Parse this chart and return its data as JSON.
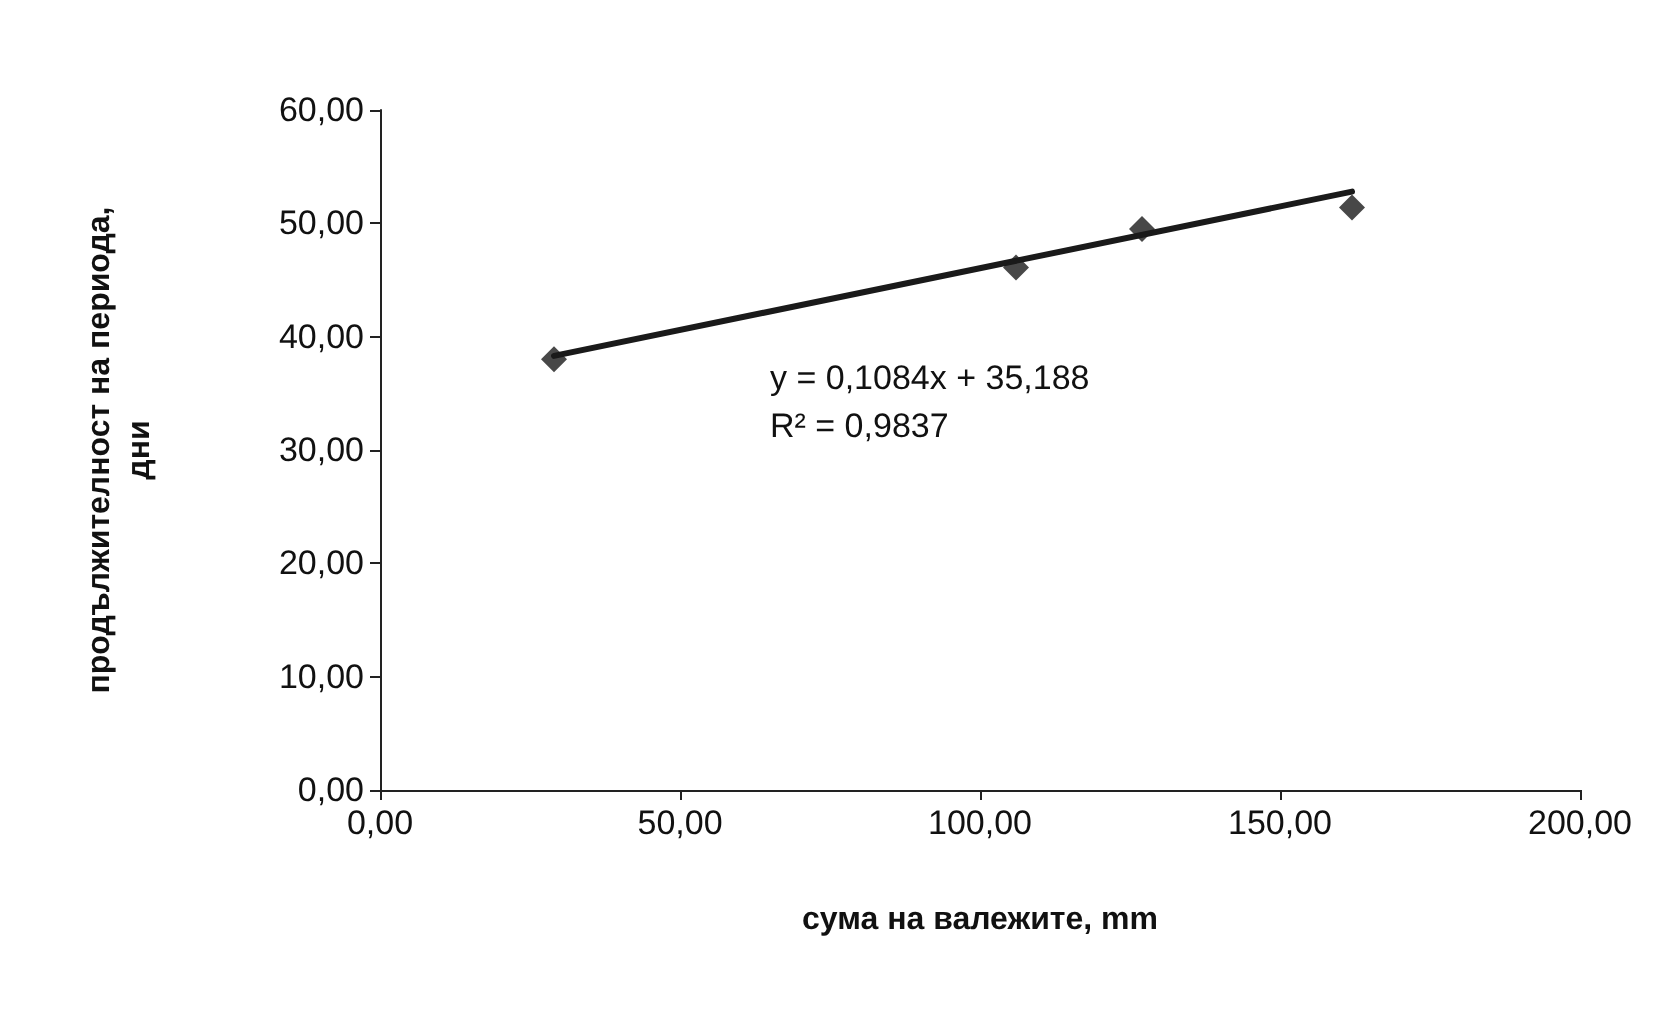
{
  "chart_data": {
    "type": "scatter",
    "xlabel": "сума на валежите, mm",
    "ylabel": "продължителност на периода,\nдни",
    "x": [
      29,
      106,
      127,
      162
    ],
    "series": [
      {
        "color": "#1a1a1a",
        "values": [
          38,
          46.1,
          49.5,
          51.4
        ],
        "marker": "diamond"
      },
      {
        "type": "line",
        "color": "#1a1a1a",
        "x": [
          29,
          162
        ],
        "values": [
          38.3,
          52.8
        ],
        "line_style": "solid",
        "marker": "none"
      }
    ],
    "xlim": [
      0,
      200
    ],
    "xticks": [
      {
        "value": 0,
        "label": "0,00"
      },
      {
        "value": 50,
        "label": "50,00"
      },
      {
        "value": 100,
        "label": "100,00"
      },
      {
        "value": 150,
        "label": "150,00"
      },
      {
        "value": 200,
        "label": "200,00"
      }
    ],
    "ylim": [
      0,
      60
    ],
    "yticks": [
      {
        "value": 0,
        "label": "0,00"
      },
      {
        "value": 10,
        "label": "10,00"
      },
      {
        "value": 20,
        "label": "20,00"
      },
      {
        "value": 30,
        "label": "30,00"
      },
      {
        "value": 40,
        "label": "40,00"
      },
      {
        "value": 50,
        "label": "50,00"
      },
      {
        "value": 60,
        "label": "60,00"
      }
    ],
    "annotations": [
      "y = 0,1084x + 35,188\nR² = 0,9837"
    ],
    "grid": false
  }
}
